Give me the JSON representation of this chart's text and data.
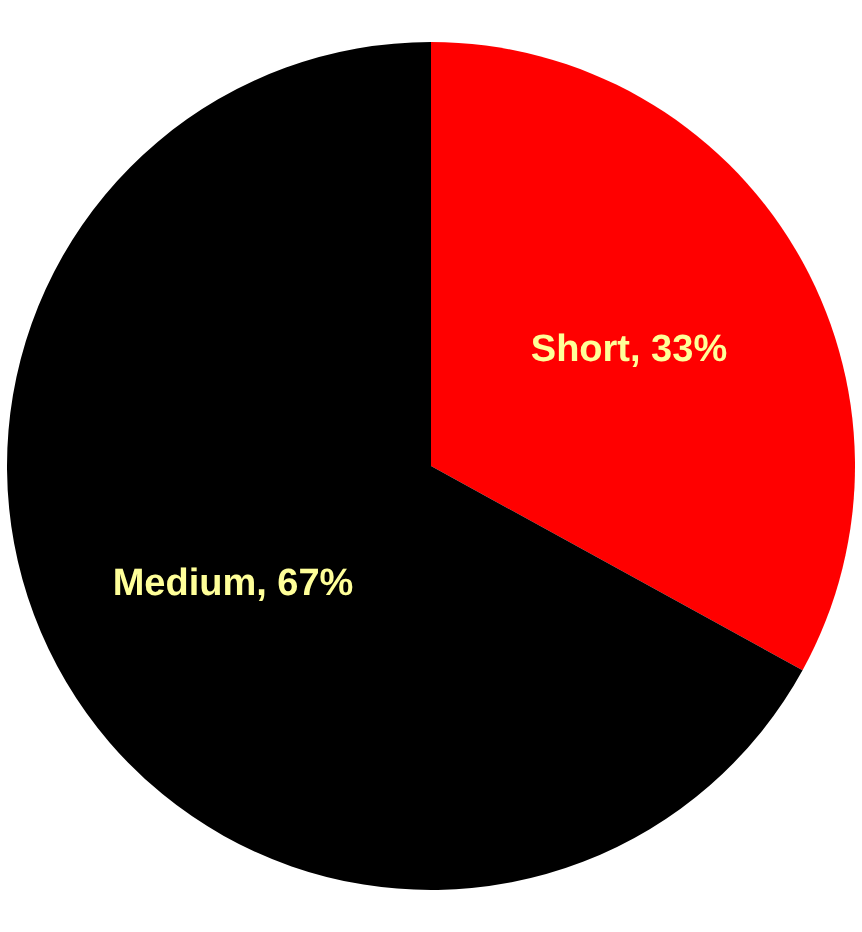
{
  "chart_data": {
    "type": "pie",
    "categories": [
      "Short",
      "Medium"
    ],
    "values": [
      33,
      67
    ],
    "colors": [
      "#ff0000",
      "#000000"
    ],
    "value_labels": [
      "33%",
      "67%"
    ],
    "legend": false
  }
}
